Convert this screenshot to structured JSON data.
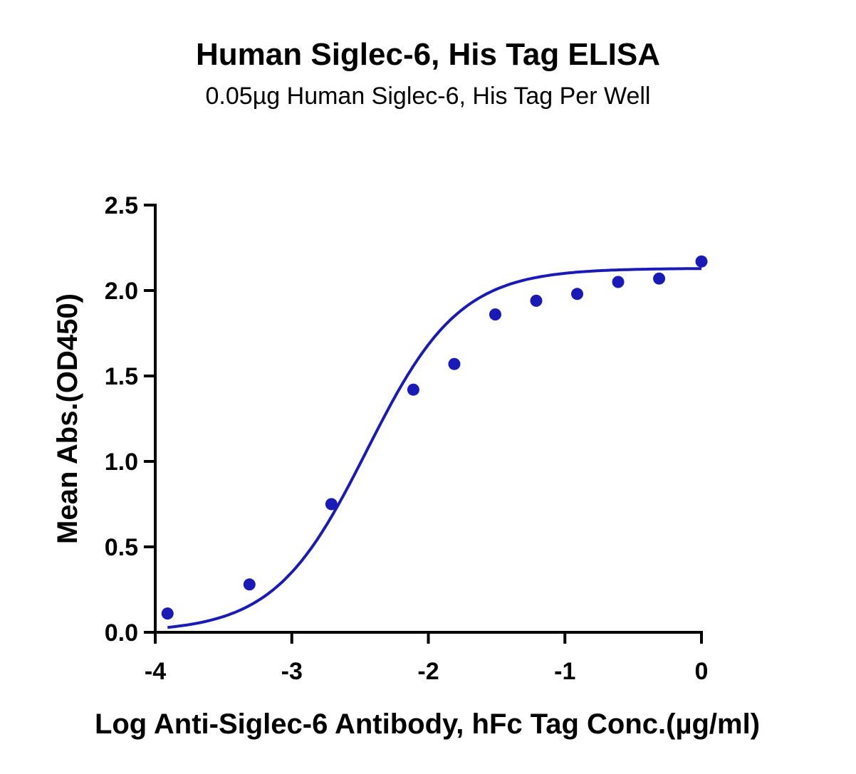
{
  "chart_data": {
    "type": "scatter",
    "title": "Human Siglec-6, His Tag ELISA",
    "subtitle": "0.05µg Human Siglec-6, His Tag Per Well",
    "xlabel": "Log Anti-Siglec-6 Antibody, hFc Tag Conc.(µg/ml)",
    "ylabel": "Mean Abs.(OD450)",
    "xlim": [
      -4,
      0
    ],
    "ylim": [
      0,
      2.5
    ],
    "x_ticks": [
      "-4",
      "-3",
      "-2",
      "-1",
      "0"
    ],
    "y_ticks": [
      "0.0",
      "0.5",
      "1.0",
      "1.5",
      "2.0",
      "2.5"
    ],
    "grid": false,
    "series": [
      {
        "color": "#1a1ab8",
        "points": [
          {
            "x": -3.91,
            "y": 0.11
          },
          {
            "x": -3.31,
            "y": 0.28
          },
          {
            "x": -2.71,
            "y": 0.75
          },
          {
            "x": -2.11,
            "y": 1.42
          },
          {
            "x": -1.81,
            "y": 1.57
          },
          {
            "x": -1.51,
            "y": 1.86
          },
          {
            "x": -1.21,
            "y": 1.94
          },
          {
            "x": -0.91,
            "y": 1.98
          },
          {
            "x": -0.61,
            "y": 2.05
          },
          {
            "x": -0.31,
            "y": 2.07
          },
          {
            "x": 0.0,
            "y": 2.17
          }
        ],
        "fit": {
          "model": "4PL",
          "bottom": 0.0,
          "top": 2.13,
          "log_ec50": -2.45,
          "hill": 1.28
        }
      }
    ]
  }
}
